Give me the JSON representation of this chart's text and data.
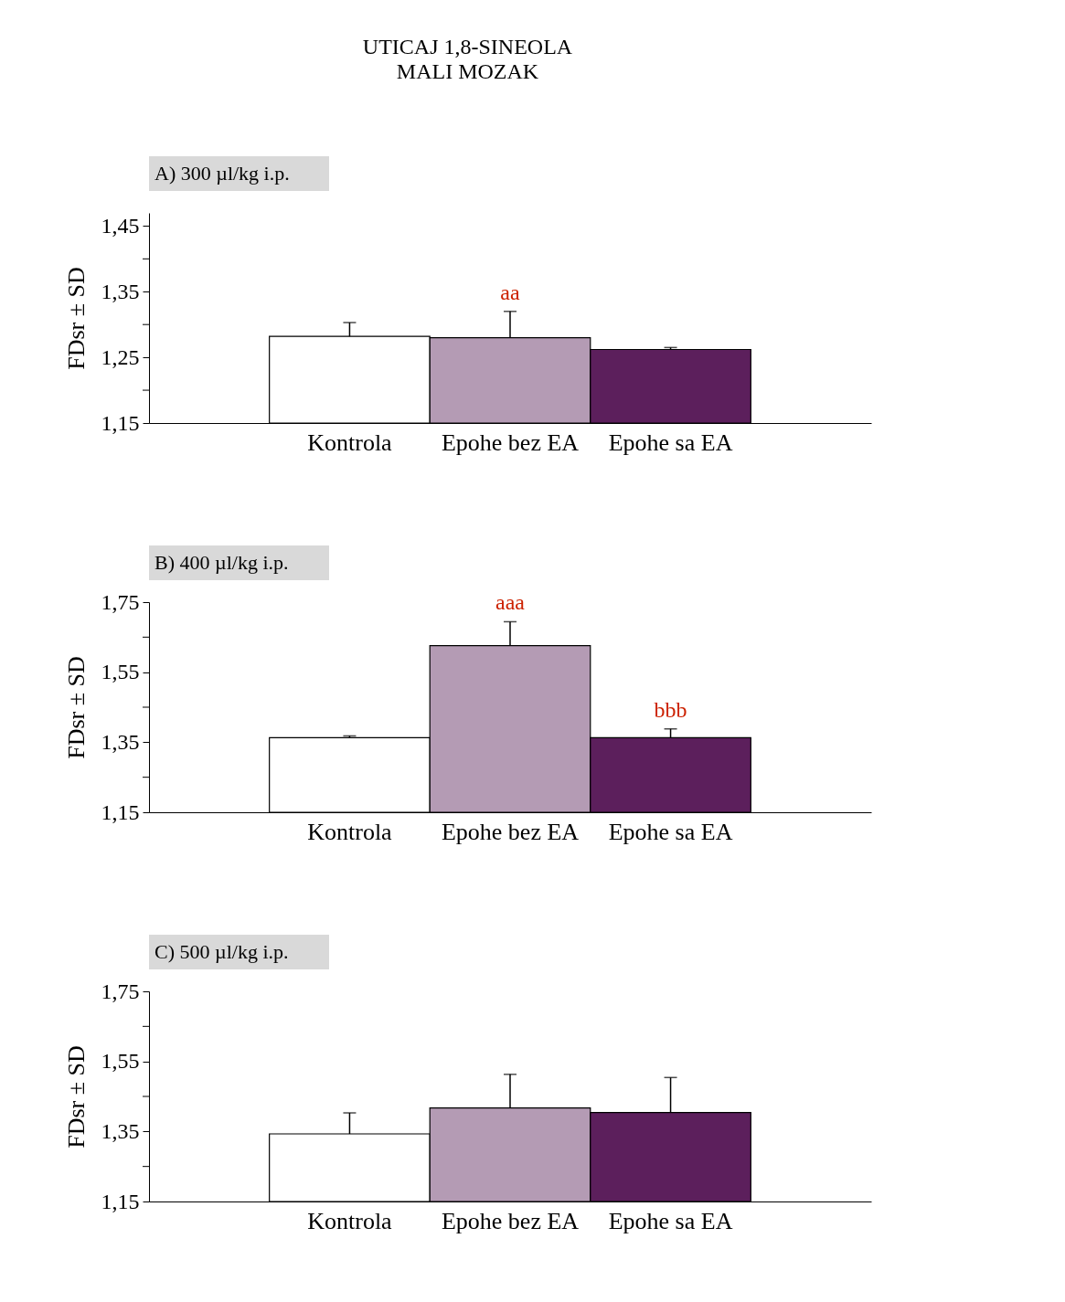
{
  "chart_data": [
    {
      "type": "bar",
      "title": "UTICAJ 1,8-SINEOLA",
      "subtitle": "MALI MOZAK",
      "ylabel": "FDsr ± SD",
      "categories": [
        "Kontrola",
        "Epohe bez EA",
        "Epohe sa EA"
      ],
      "values": [
        1.282,
        1.28,
        1.262
      ],
      "errors": [
        0.021,
        0.04,
        0.003
      ],
      "colors": [
        "#ffffff",
        "#b49bb4",
        "#5c1f5c"
      ],
      "ylim": [
        1.15,
        1.47
      ],
      "yticks": [
        {
          "value": 1.15,
          "label": "1,15"
        },
        {
          "value": 1.2,
          "label": null
        },
        {
          "value": 1.25,
          "label": "1,25"
        },
        {
          "value": 1.3,
          "label": null
        },
        {
          "value": 1.35,
          "label": "1,35"
        },
        {
          "value": 1.4,
          "label": null
        },
        {
          "value": 1.45,
          "label": "1,45"
        }
      ],
      "annotations": [
        "A) 300 µl/kg i.p.",
        {
          "text": "aa",
          "x": "Epohe bez EA",
          "y": 1.32
        }
      ],
      "grid": false
    },
    {
      "type": "bar",
      "ylabel": "FDsr ± SD",
      "categories": [
        "Kontrola",
        "Epohe bez EA",
        "Epohe sa EA"
      ],
      "values": [
        1.363,
        1.626,
        1.363
      ],
      "errors": [
        0.005,
        0.068,
        0.025
      ],
      "colors": [
        "#ffffff",
        "#b49bb4",
        "#5c1f5c"
      ],
      "ylim": [
        1.15,
        1.75
      ],
      "yticks": [
        {
          "value": 1.15,
          "label": "1,15"
        },
        {
          "value": 1.25,
          "label": null
        },
        {
          "value": 1.35,
          "label": "1,35"
        },
        {
          "value": 1.45,
          "label": null
        },
        {
          "value": 1.55,
          "label": "1,55"
        },
        {
          "value": 1.65,
          "label": null
        },
        {
          "value": 1.75,
          "label": "1,75"
        }
      ],
      "annotations": [
        "B) 400 µl/kg i.p.",
        {
          "text": "aaa",
          "x": "Epohe bez EA",
          "y": 1.694
        },
        {
          "text": "bbb",
          "x": "Epohe sa EA",
          "y": 1.388
        }
      ],
      "grid": false
    },
    {
      "type": "bar",
      "ylabel": "FDsr ± SD",
      "categories": [
        "Kontrola",
        "Epohe bez EA",
        "Epohe sa EA"
      ],
      "values": [
        1.343,
        1.417,
        1.404
      ],
      "errors": [
        0.06,
        0.096,
        0.1
      ],
      "colors": [
        "#ffffff",
        "#b49bb4",
        "#5c1f5c"
      ],
      "ylim": [
        1.15,
        1.75
      ],
      "yticks": [
        {
          "value": 1.15,
          "label": "1,15"
        },
        {
          "value": 1.25,
          "label": null
        },
        {
          "value": 1.35,
          "label": "1,35"
        },
        {
          "value": 1.45,
          "label": null
        },
        {
          "value": 1.55,
          "label": "1,55"
        },
        {
          "value": 1.65,
          "label": null
        },
        {
          "value": 1.75,
          "label": "1,75"
        }
      ],
      "annotations": [
        "C) 500 µl/kg i.p."
      ],
      "grid": false
    }
  ]
}
